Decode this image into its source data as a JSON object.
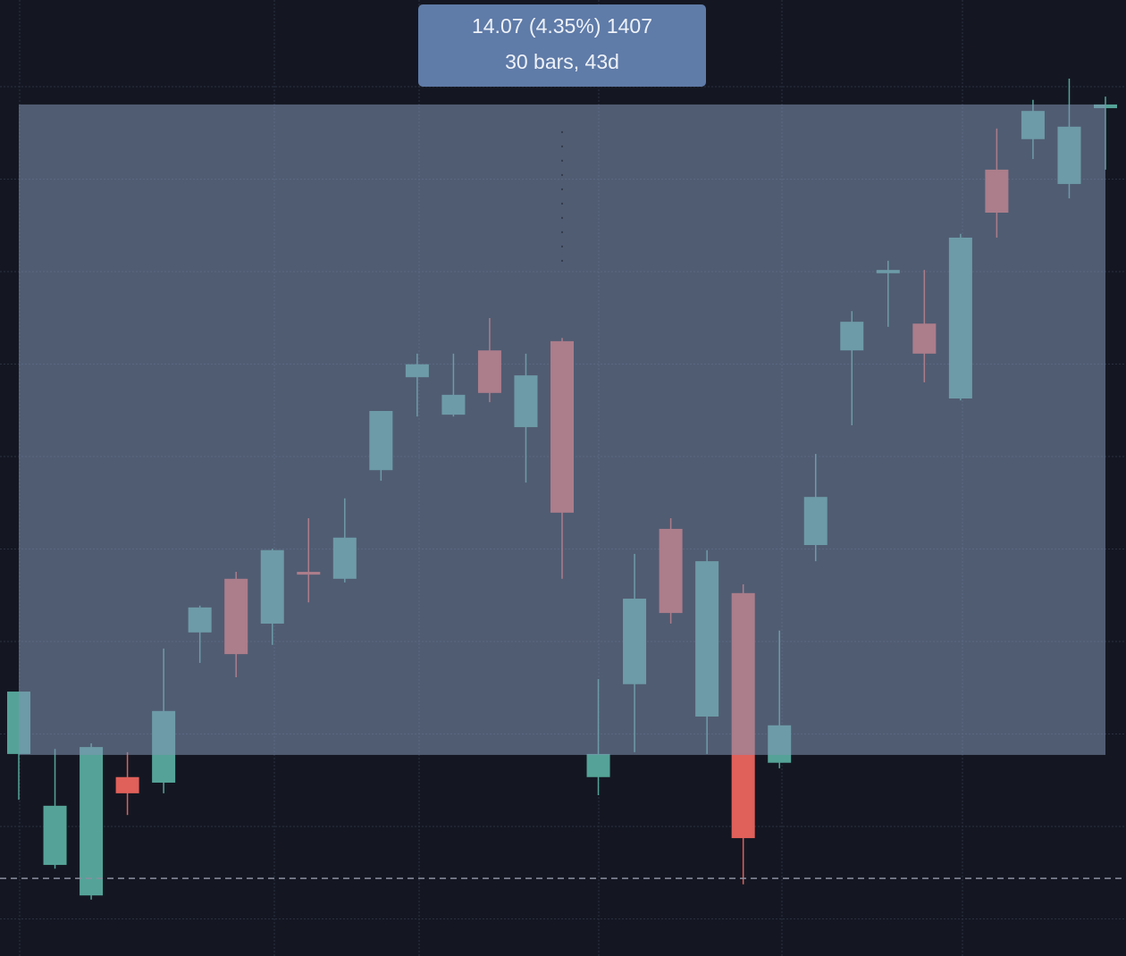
{
  "chart_data": {
    "type": "candlestick",
    "open": [
      323.47,
      321.07,
      320.41,
      322.97,
      322.85,
      326.1,
      327.26,
      326.29,
      327.41,
      327.26,
      329.61,
      331.62,
      330.81,
      332.2,
      330.54,
      332.4,
      322.97,
      324.98,
      328.34,
      324.28,
      326.95,
      323.28,
      327.99,
      332.2,
      333.87,
      332.78,
      331.16,
      336.11,
      336.77,
      335.8,
      337.44
    ],
    "high": [
      324.82,
      323.58,
      323.7,
      323.51,
      325.75,
      326.68,
      327.41,
      327.91,
      328.57,
      329.0,
      330.89,
      332.13,
      332.13,
      332.9,
      332.13,
      332.47,
      325.09,
      327.8,
      328.57,
      327.88,
      327.14,
      326.14,
      329.96,
      333.05,
      334.14,
      333.94,
      334.72,
      337.0,
      337.62,
      338.08,
      337.69
    ],
    "low": [
      322.48,
      320.99,
      320.32,
      322.15,
      322.62,
      325.44,
      325.13,
      325.83,
      326.75,
      327.18,
      329.38,
      330.77,
      330.77,
      331.08,
      329.34,
      327.26,
      322.58,
      323.51,
      326.29,
      323.47,
      320.65,
      323.16,
      327.64,
      330.58,
      332.71,
      331.51,
      331.12,
      334.64,
      336.34,
      335.49,
      336.11
    ],
    "close": [
      324.82,
      322.35,
      323.62,
      322.62,
      324.4,
      326.64,
      325.63,
      327.88,
      327.35,
      328.15,
      330.89,
      331.9,
      331.24,
      331.28,
      331.66,
      328.69,
      323.47,
      326.83,
      326.52,
      327.64,
      321.65,
      324.09,
      329.03,
      332.82,
      333.94,
      332.13,
      334.64,
      335.18,
      337.38,
      337.04,
      337.52
    ],
    "up_color": "#55a398",
    "down_color": "#e0605a",
    "ylim": [
      319.1,
      339.78
    ],
    "price_line": 320.78,
    "measure_from": 323.45,
    "measure_to": 337.52,
    "measure_label": [
      "14.07 (4.35%) 1407",
      "30 bars, 43d"
    ]
  }
}
